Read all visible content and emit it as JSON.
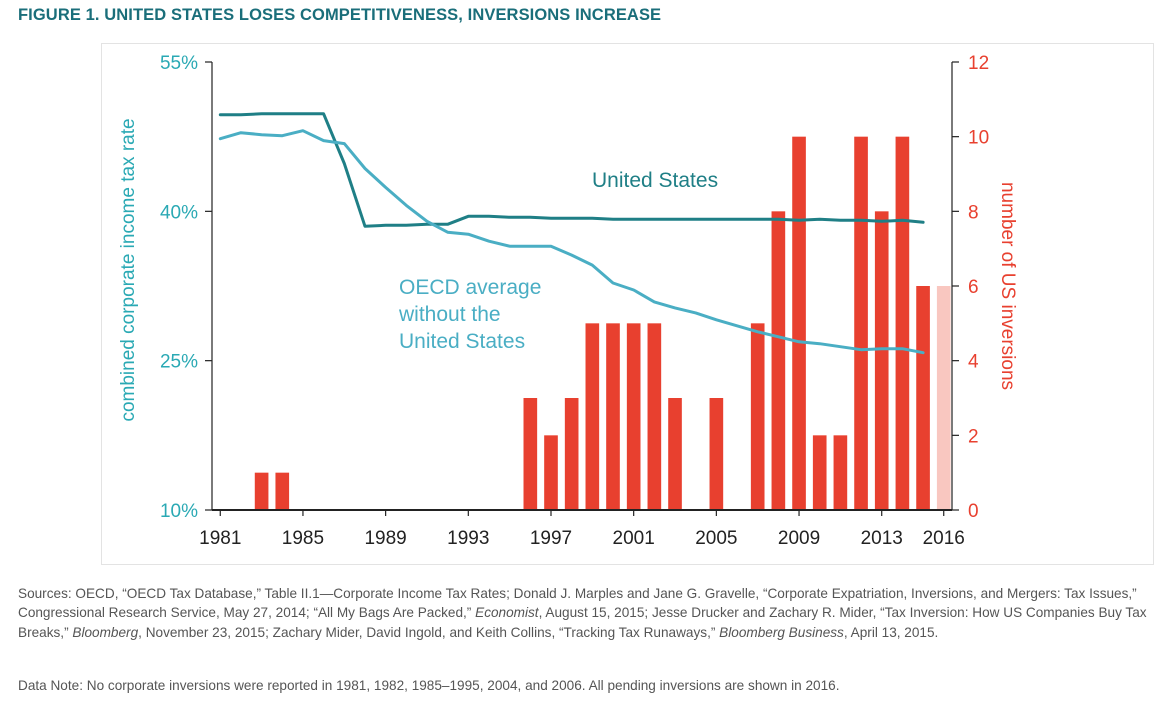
{
  "figure_title": "FIGURE 1. UNITED STATES LOSES COMPETITIVENESS, INVERSIONS INCREASE",
  "colors": {
    "us_line": "#1f7f86",
    "oecd_line": "#4aaec4",
    "bars": "#e8402f",
    "bars_pending": "#f9c7c0",
    "left_axis": "#2aa9b4",
    "right_axis": "#e8402f",
    "title": "#1a6e7a"
  },
  "chart_data": {
    "type": "bar",
    "left_axis": {
      "label": "combined corporate income tax rate",
      "ylim": [
        10,
        55
      ],
      "ticks": [
        10,
        25,
        40,
        55
      ],
      "tick_labels": [
        "10%",
        "25%",
        "40%",
        "55%"
      ]
    },
    "right_axis": {
      "label": "number of US inversions",
      "ylim": [
        0,
        12
      ],
      "ticks": [
        0,
        2,
        4,
        6,
        8,
        10,
        12
      ],
      "tick_labels": [
        "0",
        "2",
        "4",
        "6",
        "8",
        "10",
        "12"
      ]
    },
    "x_ticks": [
      "1981",
      "1985",
      "1989",
      "1993",
      "1997",
      "2001",
      "2005",
      "2009",
      "2013",
      "2016"
    ],
    "x_tick_years": [
      1981,
      1985,
      1989,
      1993,
      1997,
      2001,
      2005,
      2009,
      2013,
      2016
    ],
    "xlim": [
      1980.6,
      2016.4
    ],
    "bars": {
      "years": [
        1983,
        1984,
        1996,
        1997,
        1998,
        1999,
        2000,
        2001,
        2002,
        2003,
        2005,
        2007,
        2008,
        2009,
        2010,
        2011,
        2012,
        2013,
        2014,
        2015,
        2016
      ],
      "values": [
        1,
        1,
        3,
        2,
        3,
        5,
        5,
        5,
        5,
        3,
        3,
        5,
        8,
        10,
        2,
        2,
        10,
        8,
        10,
        6,
        6
      ],
      "pending_year": 2016
    },
    "series": [
      {
        "name": "United States",
        "x": [
          1981,
          1982,
          1983,
          1984,
          1985,
          1986,
          1987,
          1988,
          1989,
          1990,
          1991,
          1992,
          1993,
          1994,
          1995,
          1996,
          1997,
          1998,
          1999,
          2000,
          2001,
          2002,
          2003,
          2004,
          2005,
          2006,
          2007,
          2008,
          2009,
          2010,
          2011,
          2012,
          2013,
          2014,
          2015
        ],
        "y": [
          49.7,
          49.7,
          49.8,
          49.8,
          49.8,
          49.8,
          44.8,
          38.5,
          38.6,
          38.6,
          38.7,
          38.7,
          39.5,
          39.5,
          39.4,
          39.4,
          39.3,
          39.3,
          39.3,
          39.2,
          39.2,
          39.2,
          39.2,
          39.2,
          39.2,
          39.2,
          39.2,
          39.2,
          39.1,
          39.2,
          39.1,
          39.1,
          39.0,
          39.1,
          38.9
        ]
      },
      {
        "name": "OECD average without the United States",
        "x": [
          1981,
          1982,
          1983,
          1984,
          1985,
          1986,
          1987,
          1988,
          1989,
          1990,
          1991,
          1992,
          1993,
          1994,
          1995,
          1996,
          1997,
          1998,
          1999,
          2000,
          2001,
          2002,
          2003,
          2004,
          2005,
          2006,
          2007,
          2008,
          2009,
          2010,
          2011,
          2012,
          2013,
          2014,
          2015
        ],
        "y": [
          47.3,
          47.9,
          47.7,
          47.6,
          48.1,
          47.1,
          46.8,
          44.3,
          42.4,
          40.6,
          39.0,
          37.9,
          37.7,
          37.0,
          36.5,
          36.5,
          36.5,
          35.6,
          34.6,
          32.8,
          32.1,
          30.9,
          30.3,
          29.8,
          29.1,
          28.5,
          27.9,
          27.4,
          26.9,
          26.7,
          26.4,
          26.1,
          26.2,
          26.2,
          25.8
        ]
      }
    ],
    "annotations": {
      "us": "United States",
      "oecd": [
        "OECD average",
        "without the",
        "United States"
      ]
    }
  },
  "sources": {
    "p1": "Sources: OECD, “OECD Tax Database,” Table II.1—Corporate Income Tax Rates; Donald J. Marples and Jane G. Gravelle, “Corporate Expatriation, Inversions, and Mergers: Tax Issues,” Congressional Research Service, May 27, 2014; “All My Bags Are Packed,” ",
    "i1": "Economist",
    "p2": ", August 15, 2015; Jesse Drucker and Zachary R. Mider, “Tax Inversion: How US Companies Buy Tax Breaks,” ",
    "i2": "Bloomberg",
    "p3": ", November 23, 2015; Zachary Mider, David Ingold, and Keith Collins, “Tracking Tax Runaways,” ",
    "i3": "Bloomberg Business",
    "p4": ", April 13, 2015."
  },
  "data_note": "Data Note: No corporate inversions were reported in 1981, 1982, 1985–1995, 2004, and 2006. All pending inversions are shown in 2016."
}
